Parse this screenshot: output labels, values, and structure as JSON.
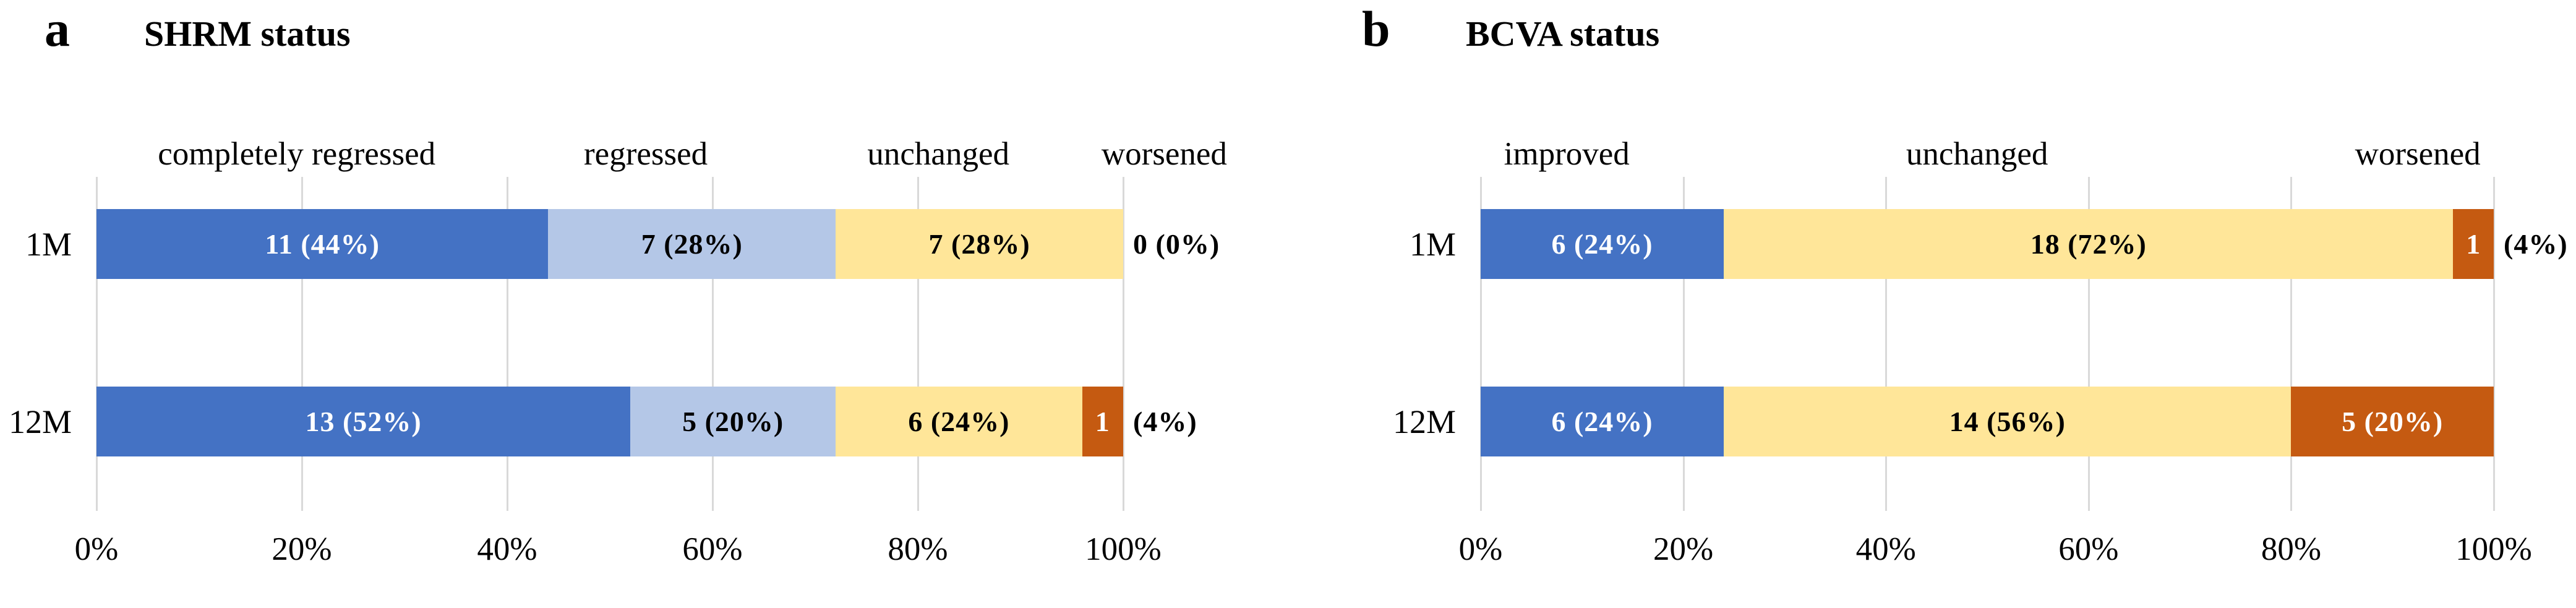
{
  "chart_data": [
    {
      "type": "bar",
      "subtype": "horizontal-stacked-100pct",
      "panel_letter": "a",
      "title": "SHRM status",
      "categories": [
        "completely regressed",
        "regressed",
        "unchanged",
        "worsened"
      ],
      "series_colors": [
        "#4472C4",
        "#B4C7E7",
        "#FFE699",
        "#C55A11"
      ],
      "series_label_colors": [
        "#FFFFFF",
        "#000000",
        "#000000",
        "#FFFFFF"
      ],
      "category_label_pos_pct": [
        19.5,
        53.5,
        82,
        104
      ],
      "rows": [
        {
          "label": "1M",
          "values": [
            11,
            7,
            7,
            0
          ],
          "pcts": [
            44,
            28,
            28,
            0
          ],
          "segment_labels": [
            "11 (44%)",
            "7 (28%)",
            "7 (28%)",
            ""
          ],
          "outside_label": "0 (0%)"
        },
        {
          "label": "12M",
          "values": [
            13,
            5,
            6,
            1
          ],
          "pcts": [
            52,
            20,
            24,
            4
          ],
          "segment_labels": [
            "13 (52%)",
            "5 (20%)",
            "6 (24%)",
            "1"
          ],
          "outside_label": "(4%)"
        }
      ],
      "x_ticks": [
        "0%",
        "20%",
        "40%",
        "60%",
        "80%",
        "100%"
      ],
      "x_tick_pcts": [
        0,
        20,
        40,
        60,
        80,
        100
      ],
      "xlim": [
        0,
        100
      ],
      "grid": true,
      "gridline_color": "#D9D9D9",
      "legend_position": "top-category-labels"
    },
    {
      "type": "bar",
      "subtype": "horizontal-stacked-100pct",
      "panel_letter": "b",
      "title": "BCVA status",
      "categories": [
        "improved",
        "unchanged",
        "worsened"
      ],
      "series_colors": [
        "#4472C4",
        "#FFE699",
        "#C55A11"
      ],
      "series_label_colors": [
        "#FFFFFF",
        "#000000",
        "#FFFFFF"
      ],
      "category_label_pos_pct": [
        8.5,
        49,
        92.5
      ],
      "rows": [
        {
          "label": "1M",
          "values": [
            6,
            18,
            1
          ],
          "pcts": [
            24,
            72,
            4
          ],
          "segment_labels": [
            "6 (24%)",
            "18 (72%)",
            "1"
          ],
          "outside_label": "(4%)"
        },
        {
          "label": "12M",
          "values": [
            6,
            14,
            5
          ],
          "pcts": [
            24,
            56,
            20
          ],
          "segment_labels": [
            "6 (24%)",
            "14 (56%)",
            "5 (20%)"
          ],
          "outside_label": ""
        }
      ],
      "x_ticks": [
        "0%",
        "20%",
        "40%",
        "60%",
        "80%",
        "100%"
      ],
      "x_tick_pcts": [
        0,
        20,
        40,
        60,
        80,
        100
      ],
      "xlim": [
        0,
        100
      ],
      "grid": true,
      "gridline_color": "#D9D9D9",
      "legend_position": "top-category-labels"
    }
  ]
}
